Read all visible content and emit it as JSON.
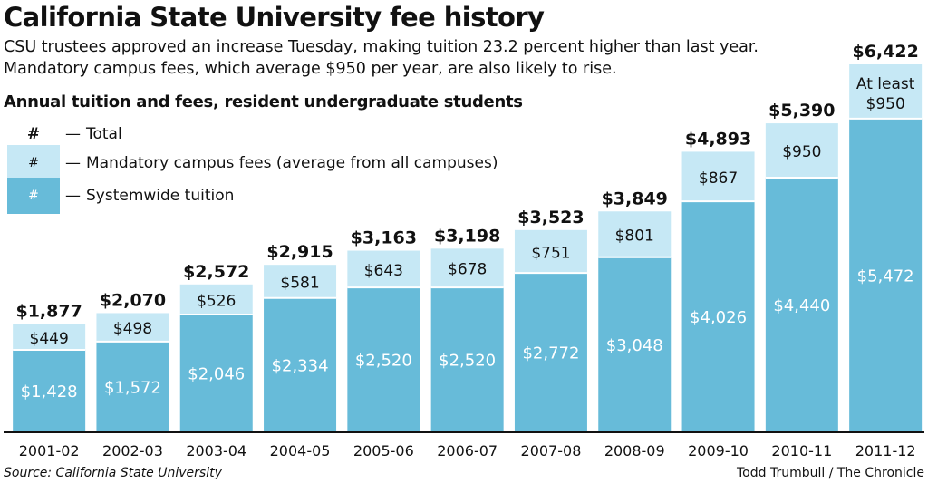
{
  "header": {
    "title": "California State University fee history",
    "subtitle": "CSU trustees approved an increase Tuesday, making tuition 23.2 percent higher than last year. Mandatory campus fees, which average $950 per year, are also likely to rise.",
    "chart_heading": "Annual tuition and fees, resident undergraduate students"
  },
  "legend": {
    "total": {
      "symbol": "#",
      "dash": "—",
      "label": "Total"
    },
    "fees": {
      "symbol": "#",
      "dash": "—",
      "label": "Mandatory campus fees (average from all campuses)"
    },
    "tuition": {
      "symbol": "#",
      "dash": "—",
      "label": "Systemwide tuition"
    }
  },
  "footer": {
    "source": "Source: California State University",
    "credit": "Todd Trumbull / The Chronicle"
  },
  "colors": {
    "tuition": "#67bbd9",
    "fees": "#c6e8f5",
    "bar_edge": "#ffffff",
    "axis": "#111111",
    "text": "#111111",
    "tuition_label": "#ffffff"
  },
  "chart_data": {
    "type": "bar",
    "stacked": true,
    "categories": [
      "2001-02",
      "2002-03",
      "2003-04",
      "2004-05",
      "2005-06",
      "2006-07",
      "2007-08",
      "2008-09",
      "2009-10",
      "2010-11",
      "2011-12"
    ],
    "series": [
      {
        "name": "Systemwide tuition",
        "values": [
          1428,
          1572,
          2046,
          2334,
          2520,
          2520,
          2772,
          3048,
          4026,
          4440,
          5472
        ],
        "labels": [
          "$1,428",
          "$1,572",
          "$2,046",
          "$2,334",
          "$2,520",
          "$2,520",
          "$2,772",
          "$3,048",
          "$4,026",
          "$4,440",
          "$5,472"
        ]
      },
      {
        "name": "Mandatory campus fees (average from all campuses)",
        "values": [
          449,
          498,
          526,
          581,
          643,
          678,
          751,
          801,
          867,
          950,
          950
        ],
        "labels": [
          "$449",
          "$498",
          "$526",
          "$581",
          "$643",
          "$678",
          "$751",
          "$801",
          "$867",
          "$950",
          "$950"
        ]
      }
    ],
    "totals": [
      1877,
      2070,
      2572,
      2915,
      3163,
      3198,
      3523,
      3849,
      4893,
      5390,
      6422
    ],
    "total_labels": [
      "$1,877",
      "$2,070",
      "$2,572",
      "$2,915",
      "$3,163",
      "$3,198",
      "$3,523",
      "$3,849",
      "$4,893",
      "$5,390",
      "$6,422"
    ],
    "annotation": {
      "category": "2011-12",
      "text": "At least"
    },
    "ylim": [
      0,
      6422
    ],
    "grid": false,
    "legend_position": "top-left"
  }
}
